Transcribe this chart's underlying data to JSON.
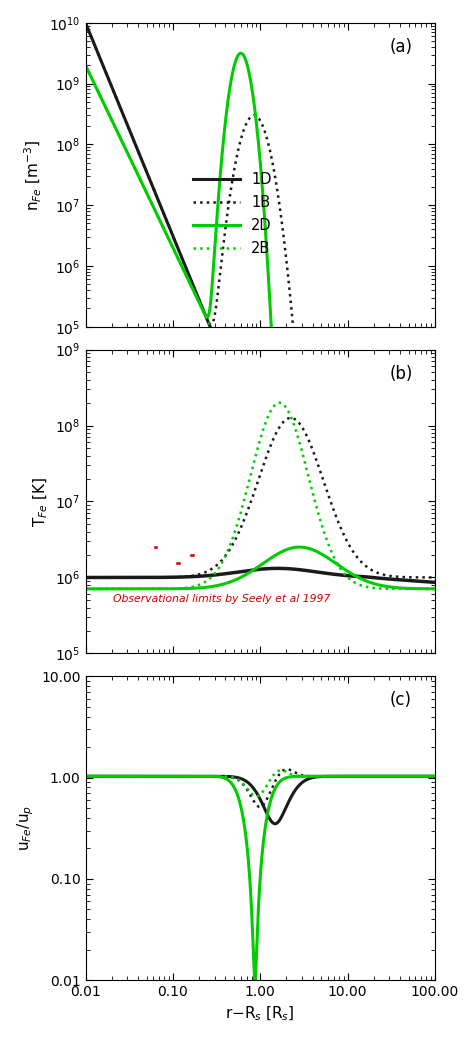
{
  "xlim": [
    0.01,
    100.0
  ],
  "panel_a": {
    "ylabel": "n$_{Fe}$ [m$^{-3}$]",
    "ylim": [
      100000.0,
      10000000000.0
    ],
    "label": "(a)"
  },
  "panel_b": {
    "ylabel": "T$_{Fe}$ [K]",
    "ylim": [
      100000.0,
      1000000000.0
    ],
    "label": "(b)",
    "obs_text": "Observational limits by Seely et al 1997",
    "obs_color": "#cc0000"
  },
  "panel_c": {
    "ylabel": "u$_{Fe}$/u$_p$",
    "ylim": [
      0.01,
      10.0
    ],
    "label": "(c)"
  },
  "xlabel": "r−R$_s$ [R$_s$]",
  "colors": {
    "black": "#1a1a1a",
    "green": "#00cc00"
  },
  "legend_entries": [
    "1D",
    "1B",
    "2D",
    "2B"
  ]
}
